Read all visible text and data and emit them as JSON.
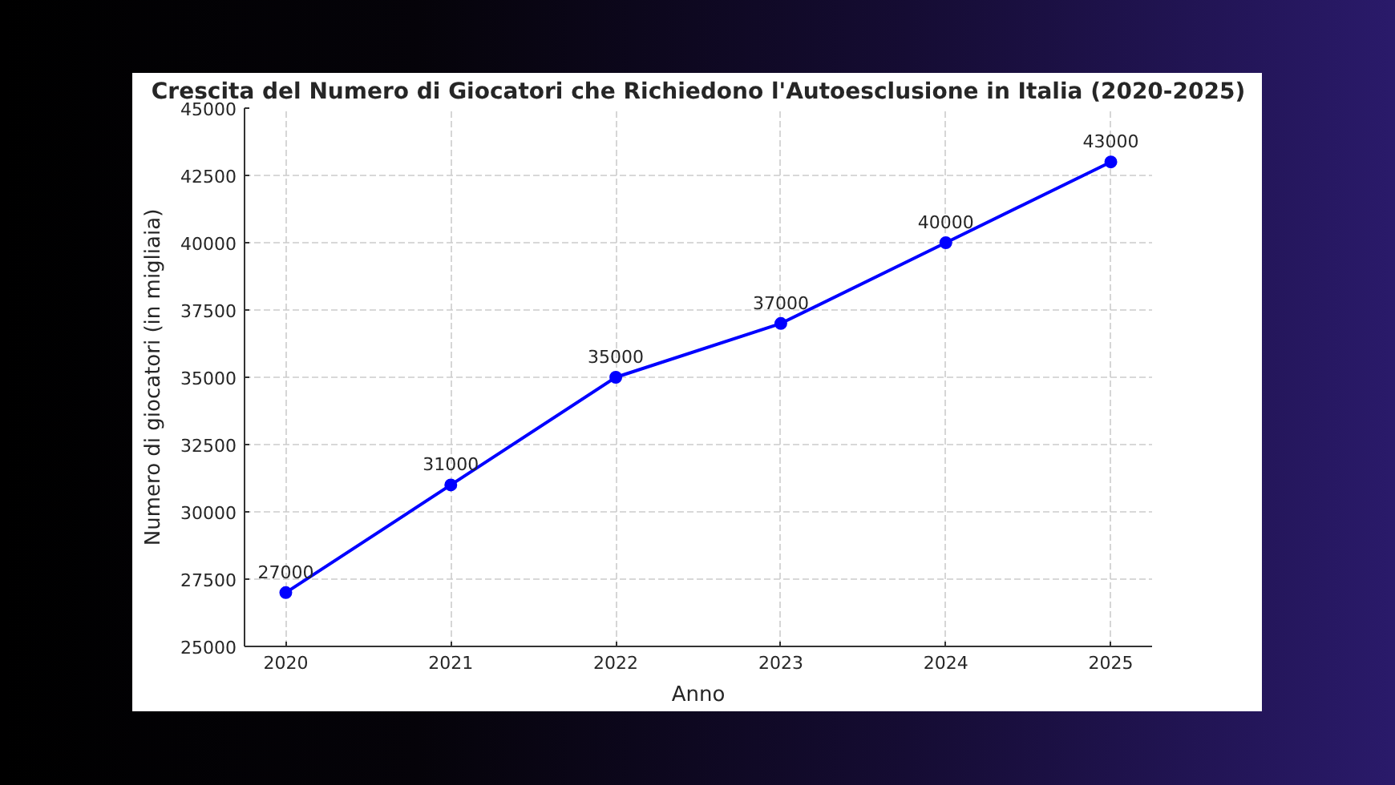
{
  "chart_data": {
    "type": "line",
    "title": "Crescita del Numero di Giocatori che Richiedono l'Autoesclusione in Italia (2020-2025)",
    "xlabel": "Anno",
    "ylabel": "Numero di giocatori (in migliaia)",
    "x": [
      2020,
      2021,
      2022,
      2023,
      2024,
      2025
    ],
    "series": [
      {
        "color": "#0000ff",
        "values": [
          27000,
          31000,
          35000,
          37000,
          40000,
          43000
        ]
      }
    ],
    "xlim": [
      2019.75,
      2025.25
    ],
    "ylim": [
      25000,
      45000
    ],
    "xticks": [
      2020,
      2021,
      2022,
      2023,
      2024,
      2025
    ],
    "yticks": [
      25000,
      27500,
      30000,
      32500,
      35000,
      37500,
      40000,
      42500,
      45000
    ],
    "grid": true,
    "marker": "circle",
    "line_style": "solid",
    "data_labels": true
  }
}
